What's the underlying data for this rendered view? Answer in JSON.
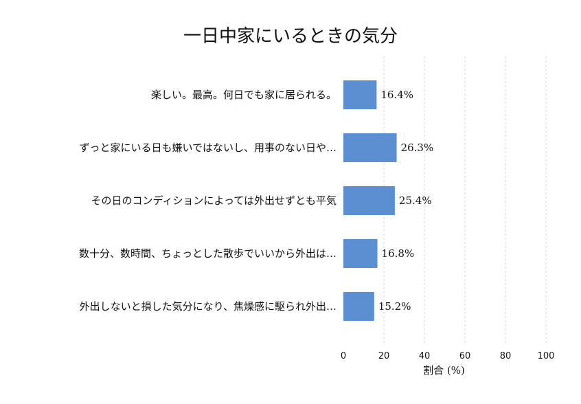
{
  "chart_data": {
    "type": "bar",
    "orientation": "horizontal",
    "title": "一日中家にいるときの気分",
    "xlabel": "割合 (%)",
    "ylabel": "",
    "xlim": [
      0,
      100
    ],
    "xticks": [
      0,
      20,
      40,
      60,
      80,
      100
    ],
    "grid": "x-dashed",
    "categories": [
      "楽しい。最高。何日でも家に居られる。",
      "ずっと家にいる日も嫌いではないし、用事のない日や…",
      "その日のコンディションによっては外出せずとも平気",
      "数十分、数時間、ちょっとした散歩でいいから外出は…",
      "外出しないと損した気分になり、焦燥感に駆られ外出…"
    ],
    "values": [
      16.4,
      26.3,
      25.4,
      16.8,
      15.2
    ],
    "value_labels": [
      "16.4%",
      "26.3%",
      "25.4%",
      "16.8%",
      "15.2%"
    ],
    "bar_color": "#5b8fd1"
  }
}
